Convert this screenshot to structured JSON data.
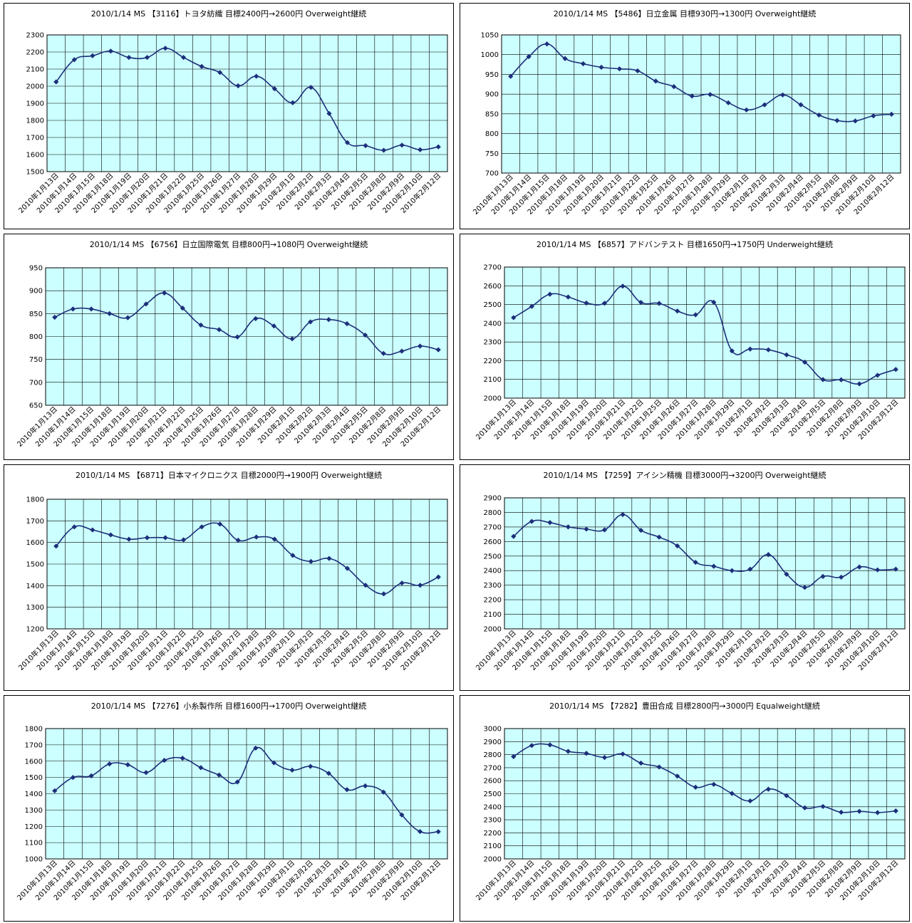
{
  "colors": {
    "plot_bg": "#ccffff",
    "grid": "#000000",
    "line": "#1c2f7a"
  },
  "chart_data": [
    {
      "type": "line",
      "title": "2010/1/14 MS 【3116】トヨタ紡織 目標2400円→2600円 Overweight継続",
      "categories": [
        "2010年1月13日",
        "2010年1月14日",
        "2010年1月15日",
        "2010年1月18日",
        "2010年1月19日",
        "2010年1月20日",
        "2010年1月21日",
        "2010年1月22日",
        "2010年1月25日",
        "2010年1月26日",
        "2010年1月27日",
        "2010年1月28日",
        "2010年1月29日",
        "2010年2月1日",
        "2010年2月2日",
        "2010年2月3日",
        "2010年2月4日",
        "2010年2月5日",
        "2010年2月8日",
        "2010年2月9日",
        "2010年2月10日",
        "2010年2月12日"
      ],
      "values": [
        2025,
        2155,
        2178,
        2205,
        2168,
        2168,
        2222,
        2168,
        2115,
        2080,
        2002,
        2058,
        1985,
        1903,
        1993,
        1840,
        1670,
        1652,
        1625,
        1655,
        1628,
        1645
      ],
      "ylim": [
        1500,
        2300
      ],
      "ystep": 100,
      "grid": true
    },
    {
      "type": "line",
      "title": "2010/1/14 MS 【5486】日立金属 目標930円→1300円 Overweight継続",
      "categories": [
        "2010年1月13日",
        "2010年1月14日",
        "2010年1月15日",
        "2010年1月18日",
        "2010年1月19日",
        "2010年1月20日",
        "2010年1月21日",
        "2010年1月22日",
        "2010年1月25日",
        "2010年1月26日",
        "2010年1月27日",
        "2010年1月28日",
        "2010年1月29日",
        "2010年2月1日",
        "2010年2月2日",
        "2010年2月3日",
        "2010年2月4日",
        "2010年2月5日",
        "2010年2月8日",
        "2010年2月9日",
        "2010年2月10日",
        "2010年2月12日"
      ],
      "values": [
        945,
        995,
        1027,
        990,
        977,
        968,
        964,
        959,
        933,
        919,
        895,
        899,
        878,
        860,
        873,
        898,
        873,
        847,
        833,
        832,
        845,
        849
      ],
      "ylim": [
        700,
        1050
      ],
      "ystep": 50,
      "grid": true
    },
    {
      "type": "line",
      "title": "2010/1/14 MS 【6756】日立国際電気 目標800円→1080円 Overweight継続",
      "categories": [
        "2010年1月13日",
        "2010年1月14日",
        "2010年1月15日",
        "2010年1月18日",
        "2010年1月19日",
        "2010年1月20日",
        "2010年1月21日",
        "2010年1月22日",
        "2010年1月25日",
        "2010年1月26日",
        "2010年1月27日",
        "2010年1月28日",
        "2010年1月29日",
        "2010年2月1日",
        "2010年2月2日",
        "2010年2月3日",
        "2010年2月4日",
        "2010年2月5日",
        "2010年2月8日",
        "2010年2月9日",
        "2010年2月10日",
        "2010年2月12日"
      ],
      "values": [
        842,
        860,
        860,
        850,
        841,
        871,
        895,
        862,
        825,
        815,
        799,
        839,
        823,
        795,
        832,
        837,
        828,
        803,
        763,
        768,
        779,
        771
      ],
      "ylim": [
        650,
        950
      ],
      "ystep": 50,
      "grid": true
    },
    {
      "type": "line",
      "title": "2010/1/14 MS 【6857】アドバンテスト 目標1650円→1750円 Underweight継続",
      "categories": [
        "2010年1月13日",
        "2010年1月14日",
        "2010年1月15日",
        "2010年1月18日",
        "2010年1月19日",
        "2010年1月20日",
        "2010年1月21日",
        "2010年1月22日",
        "2010年1月25日",
        "2010年1月26日",
        "2010年1月27日",
        "2010年1月28日",
        "2010年1月29日",
        "2010年2月1日",
        "2010年2月2日",
        "2010年2月3日",
        "2010年2月4日",
        "2010年2月5日",
        "2010年2月8日",
        "2010年2月9日",
        "2010年2月10日",
        "2010年2月12日"
      ],
      "values": [
        2430,
        2490,
        2555,
        2540,
        2508,
        2507,
        2598,
        2511,
        2506,
        2465,
        2445,
        2512,
        2252,
        2262,
        2258,
        2231,
        2192,
        2099,
        2098,
        2076,
        2122,
        2153
      ],
      "ylim": [
        2000,
        2700
      ],
      "ystep": 100,
      "grid": true
    },
    {
      "type": "line",
      "title": "2010/1/14 MS 【6871】日本マイクロニクス 目標2000円→1900円 Overweight継続",
      "categories": [
        "2010年1月13日",
        "2010年1月14日",
        "2010年1月15日",
        "2010年1月18日",
        "2010年1月19日",
        "2010年1月20日",
        "2010年1月21日",
        "2010年1月22日",
        "2010年1月25日",
        "2010年1月26日",
        "2010年1月27日",
        "2010年1月28日",
        "2010年1月29日",
        "2010年2月1日",
        "2010年2月2日",
        "2010年2月3日",
        "2010年2月4日",
        "2010年2月5日",
        "2010年2月8日",
        "2010年2月9日",
        "2010年2月10日",
        "2010年2月12日"
      ],
      "values": [
        1583,
        1672,
        1658,
        1635,
        1615,
        1622,
        1622,
        1612,
        1672,
        1685,
        1610,
        1625,
        1615,
        1540,
        1512,
        1526,
        1480,
        1402,
        1362,
        1412,
        1402,
        1440
      ],
      "ylim": [
        1200,
        1800
      ],
      "ystep": 100,
      "grid": true
    },
    {
      "type": "line",
      "title": "2010/1/14 MS 【7259】アイシン精機 目標3000円→3200円 Overweight継続",
      "categories": [
        "2010年1月13日",
        "2010年1月14日",
        "2010年1月15日",
        "2010年1月18日",
        "2010年1月19日",
        "2010年1月20日",
        "2010年1月21日",
        "2010年1月22日",
        "2010年1月25日",
        "2010年1月26日",
        "2010年1月27日",
        "2010年1月28日",
        "2010年1月29日",
        "2010年2月1日",
        "2010年2月2日",
        "2010年2月3日",
        "2010年2月4日",
        "2010年2月5日",
        "2010年2月8日",
        "2010年2月9日",
        "2010年2月10日",
        "2010年2月12日"
      ],
      "values": [
        2635,
        2738,
        2730,
        2700,
        2685,
        2680,
        2785,
        2677,
        2630,
        2570,
        2457,
        2430,
        2400,
        2410,
        2510,
        2375,
        2285,
        2360,
        2355,
        2425,
        2405,
        2410
      ],
      "ylim": [
        2000,
        2900
      ],
      "ystep": 100,
      "grid": true
    },
    {
      "type": "line",
      "title": "2010/1/14 MS 【7276】小糸製作所 目標1600円→1700円 Overweight継続",
      "categories": [
        "2010年1月13日",
        "2010年1月14日",
        "2010年1月15日",
        "2010年1月18日",
        "2010年1月19日",
        "2010年1月20日",
        "2010年1月21日",
        "2010年1月22日",
        "2010年1月25日",
        "2010年1月26日",
        "2010年1月27日",
        "2010年1月28日",
        "2010年1月29日",
        "2010年2月1日",
        "2010年2月2日",
        "2010年2月3日",
        "2010年2月4日",
        "2010年2月5日",
        "2010年2月8日",
        "2010年2月9日",
        "2010年2月10日",
        "2010年2月12日"
      ],
      "values": [
        1418,
        1500,
        1510,
        1583,
        1578,
        1530,
        1605,
        1618,
        1560,
        1515,
        1472,
        1680,
        1590,
        1545,
        1568,
        1525,
        1425,
        1448,
        1410,
        1270,
        1168,
        1167
      ],
      "ylim": [
        1000,
        1800
      ],
      "ystep": 100,
      "grid": true
    },
    {
      "type": "line",
      "title": "2010/1/14 MS 【7282】豊田合成 目標2800円→3000円 Equalweight継続",
      "categories": [
        "2010年1月13日",
        "2010年1月14日",
        "2010年1月15日",
        "2010年1月18日",
        "2010年1月19日",
        "2010年1月20日",
        "2010年1月21日",
        "2010年1月22日",
        "2010年1月25日",
        "2010年1月26日",
        "2010年1月27日",
        "2010年1月28日",
        "2010年1月29日",
        "2010年2月1日",
        "2010年2月2日",
        "2010年2月3日",
        "2010年2月4日",
        "2010年2月5日",
        "2010年2月8日",
        "2010年2月9日",
        "2010年2月10日",
        "2010年2月12日"
      ],
      "values": [
        2785,
        2870,
        2875,
        2825,
        2810,
        2778,
        2805,
        2735,
        2705,
        2635,
        2550,
        2572,
        2502,
        2445,
        2535,
        2485,
        2392,
        2402,
        2358,
        2365,
        2355,
        2368
      ],
      "ylim": [
        2000,
        3000
      ],
      "ystep": 100,
      "grid": true
    }
  ]
}
